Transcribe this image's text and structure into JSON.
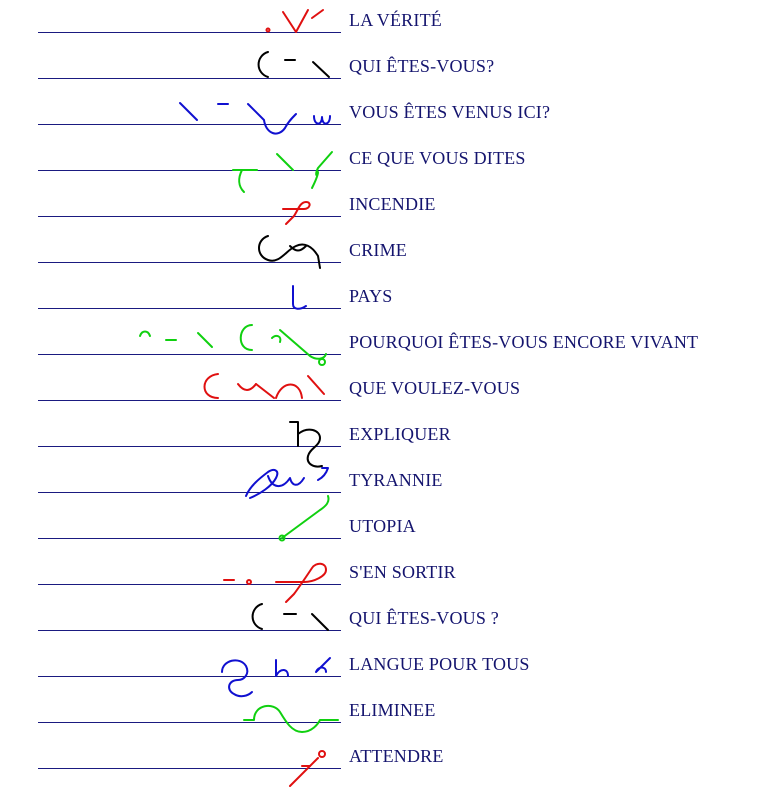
{
  "colors": {
    "rule": "#1a1a80",
    "label": "#14146e",
    "red": "#e01010",
    "black": "#000000",
    "blue": "#1010d0",
    "green": "#10d010"
  },
  "entries": [
    {
      "label": "LA VÉRITÉ",
      "ink": "red"
    },
    {
      "label": "QUI ÊTES-VOUS?",
      "ink": "black"
    },
    {
      "label": "VOUS ÊTES VENUS ICI?",
      "ink": "blue"
    },
    {
      "label": "CE QUE VOUS DITES",
      "ink": "green"
    },
    {
      "label": "INCENDIE",
      "ink": "red"
    },
    {
      "label": "CRIME",
      "ink": "black"
    },
    {
      "label": "PAYS",
      "ink": "blue"
    },
    {
      "label": "POURQUOI ÊTES-VOUS ENCORE VIVANT",
      "ink": "green"
    },
    {
      "label": "QUE VOULEZ-VOUS",
      "ink": "red"
    },
    {
      "label": "EXPLIQUER",
      "ink": "black"
    },
    {
      "label": "TYRANNIE",
      "ink": "blue"
    },
    {
      "label": "UTOPIA",
      "ink": "green"
    },
    {
      "label": "S'EN SORTIR",
      "ink": "red"
    },
    {
      "label": "QUI ÊTES-VOUS ?",
      "ink": "black"
    },
    {
      "label": "LANGUE POUR TOUS",
      "ink": "blue"
    },
    {
      "label": "ELIMINEE",
      "ink": "green"
    },
    {
      "label": "ATTENDRE",
      "ink": "red"
    }
  ]
}
